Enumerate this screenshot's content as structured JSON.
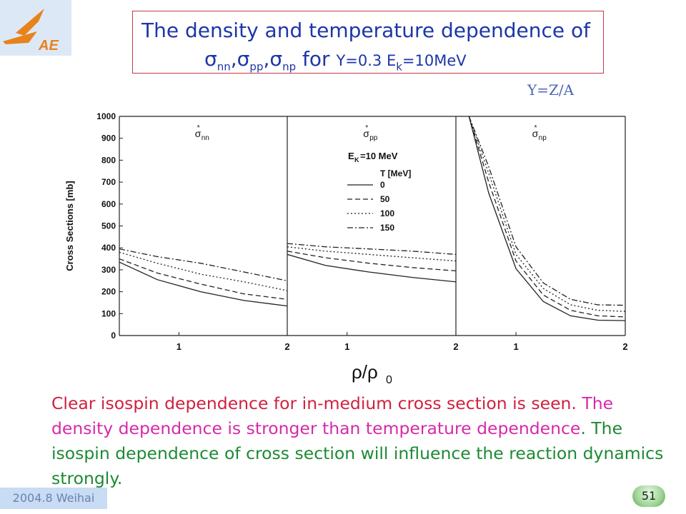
{
  "header": {
    "title_line1": "The density and temperature dependence of",
    "sigma_nn": "σ",
    "sub_nn": "nn",
    "comma1": ",",
    "sigma_pp": "σ",
    "sub_pp": "pp",
    "comma2": ",",
    "sigma_np": "σ",
    "sub_np": "np",
    "for_word": " for ",
    "cond_a": "Y=0.3 E",
    "cond_sub": "k",
    "cond_b": "=10MeV"
  },
  "annotation_yz": "Y=Z/A",
  "logo_text": "AE",
  "chart_data": {
    "type": "line",
    "ylabel": "Cross Sections [mb]",
    "xlabel": "ρ/ρ",
    "xlabel_sub": "0",
    "ylim": [
      0,
      1000
    ],
    "yticks": [
      "0",
      "100",
      "200",
      "300",
      "400",
      "500",
      "600",
      "700",
      "800",
      "900",
      "1000"
    ],
    "xlim": [
      0.45,
      2.0
    ],
    "xticks": [
      "1",
      "2"
    ],
    "legend_title": "T [MeV]",
    "energy_label": "E",
    "energy_sub": "K",
    "energy_value": "=10 MeV",
    "legend_placement": "top-center panel",
    "grid": false,
    "series_styles": {
      "0": "solid",
      "50": "dashed",
      "100": "dotted",
      "150": "dashdot"
    },
    "panels": [
      {
        "label": "σ",
        "label_sub": "nn",
        "x": [
          0.45,
          0.8,
          1.2,
          1.6,
          2.0
        ],
        "series": [
          {
            "name": "0",
            "values": [
              335,
              255,
              200,
              160,
              135
            ]
          },
          {
            "name": "50",
            "values": [
              350,
              285,
              235,
              190,
              165
            ]
          },
          {
            "name": "100",
            "values": [
              380,
              330,
              280,
              245,
              205
            ]
          },
          {
            "name": "150",
            "values": [
              395,
              360,
              330,
              290,
              250
            ]
          }
        ]
      },
      {
        "label": "σ",
        "label_sub": "pp",
        "x": [
          0.45,
          0.8,
          1.2,
          1.6,
          2.0
        ],
        "series": [
          {
            "name": "0",
            "values": [
              370,
              320,
              290,
              265,
              245
            ]
          },
          {
            "name": "50",
            "values": [
              385,
              355,
              330,
              310,
              295
            ]
          },
          {
            "name": "100",
            "values": [
              405,
              385,
              370,
              355,
              340
            ]
          },
          {
            "name": "150",
            "values": [
              420,
              405,
              395,
              385,
              370
            ]
          }
        ]
      },
      {
        "label": "σ",
        "label_sub": "np",
        "x": [
          0.57,
          0.75,
          1.0,
          1.25,
          1.5,
          1.75,
          2.0
        ],
        "series": [
          {
            "name": "0",
            "values": [
              1000,
              650,
              305,
              155,
              90,
              70,
              68
            ]
          },
          {
            "name": "50",
            "values": [
              1000,
              700,
              340,
              185,
              115,
              90,
              85
            ]
          },
          {
            "name": "100",
            "values": [
              1000,
              740,
              370,
              215,
              140,
              115,
              110
            ]
          },
          {
            "name": "150",
            "values": [
              1000,
              770,
              405,
              240,
              165,
              140,
              138
            ]
          }
        ]
      }
    ]
  },
  "description": {
    "part1": "Clear isospin dependence for in-medium cross section is seen. ",
    "part2": "The density dependence is stronger than temperature dependence",
    "part3": ". The isospin dependence of  cross section will influence the reaction dynamics strongly."
  },
  "footer": {
    "left": "2004.8 Weihai",
    "page": "51"
  }
}
